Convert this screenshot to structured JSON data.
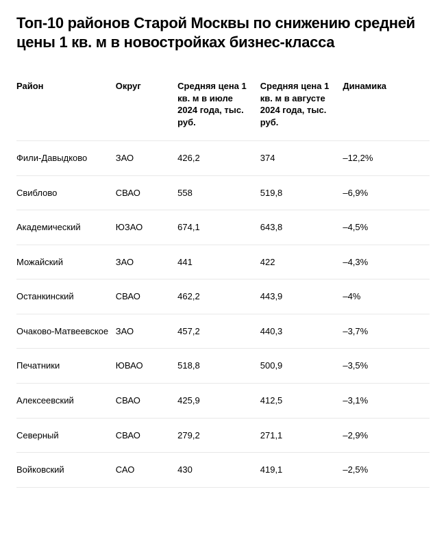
{
  "title": "Топ-10 районов Старой Москвы по снижению средней цены 1 кв. м в новостройках бизнес-класса",
  "table": {
    "columns": [
      "Район",
      "Округ",
      "Средняя цена 1 кв. м в июле 2024 года, тыс. руб.",
      "Средняя цена 1 кв. м в августе 2024 года, тыс. руб.",
      "Динамика"
    ],
    "rows": [
      {
        "district": "Фили-Давыдково",
        "okrug": "ЗАО",
        "july": "426,2",
        "august": "374",
        "change": "–12,2%"
      },
      {
        "district": "Свиблово",
        "okrug": "СВАО",
        "july": "558",
        "august": "519,8",
        "change": "–6,9%"
      },
      {
        "district": "Академический",
        "okrug": "ЮЗАО",
        "july": "674,1",
        "august": "643,8",
        "change": "–4,5%"
      },
      {
        "district": "Можайский",
        "okrug": "ЗАО",
        "july": "441",
        "august": "422",
        "change": "–4,3%"
      },
      {
        "district": "Останкинский",
        "okrug": "СВАО",
        "july": "462,2",
        "august": "443,9",
        "change": "–4%"
      },
      {
        "district": "Очаково-Матвеевское",
        "okrug": "ЗАО",
        "july": "457,2",
        "august": "440,3",
        "change": "–3,7%"
      },
      {
        "district": "Печатники",
        "okrug": "ЮВАО",
        "july": "518,8",
        "august": "500,9",
        "change": "–3,5%"
      },
      {
        "district": "Алексеевский",
        "okrug": "СВАО",
        "july": "425,9",
        "august": "412,5",
        "change": "–3,1%"
      },
      {
        "district": "Северный",
        "okrug": "СВАО",
        "july": "279,2",
        "august": "271,1",
        "change": "–2,9%"
      },
      {
        "district": "Войковский",
        "okrug": "САО",
        "july": "430",
        "august": "419,1",
        "change": "–2,5%"
      }
    ]
  },
  "styling": {
    "background_color": "#ffffff",
    "text_color": "#000000",
    "border_color": "#e8e8e8",
    "title_fontsize": 22,
    "header_fontsize": 13,
    "cell_fontsize": 13
  }
}
